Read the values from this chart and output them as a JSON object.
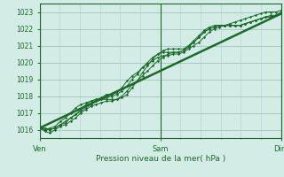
{
  "title": "Pression niveau de la mer( hPa )",
  "bg_color": "#d4ece6",
  "grid_color_major": "#a0c4bc",
  "grid_color_minor": "#b8d8d2",
  "line_color": "#1a6b2a",
  "tick_color": "#1a6b2a",
  "ylim": [
    1015.5,
    1023.5
  ],
  "yticks": [
    1016,
    1017,
    1018,
    1019,
    1020,
    1021,
    1022,
    1023
  ],
  "xtick_labels": [
    "Ven",
    "Sam",
    "Dim"
  ],
  "xtick_positions": [
    0,
    48,
    96
  ],
  "x_total": 96,
  "x_minor_divisions": 8,
  "series": [
    [
      1016.1,
      1016.1,
      1016.0,
      1016.1,
      1016.3,
      1016.4,
      1016.7,
      1016.9,
      1017.2,
      1017.5,
      1017.7,
      1017.8,
      1017.9,
      1018.1,
      1018.1,
      1018.2,
      1018.5,
      1018.9,
      1019.2,
      1019.4,
      1019.7,
      1019.9,
      1020.1,
      1020.3,
      1020.4,
      1020.4,
      1020.5,
      1020.5,
      1020.6,
      1020.8,
      1021.0,
      1021.2,
      1021.5,
      1021.8,
      1022.0,
      1022.1,
      1022.2,
      1022.2,
      1022.2,
      1022.2,
      1022.3,
      1022.4,
      1022.5,
      1022.6,
      1022.7,
      1022.7,
      1022.8,
      1022.9
    ],
    [
      1016.1,
      1015.9,
      1015.8,
      1016.0,
      1016.2,
      1016.3,
      1016.5,
      1016.7,
      1017.0,
      1017.2,
      1017.4,
      1017.5,
      1017.6,
      1017.7,
      1017.7,
      1017.8,
      1018.0,
      1018.3,
      1018.7,
      1018.9,
      1019.2,
      1019.5,
      1019.8,
      1020.1,
      1020.3,
      1020.5,
      1020.6,
      1020.6,
      1020.7,
      1021.0,
      1021.3,
      1021.6,
      1021.9,
      1022.1,
      1022.2,
      1022.2,
      1022.2,
      1022.2,
      1022.2,
      1022.2,
      1022.3,
      1022.4,
      1022.5,
      1022.6,
      1022.7,
      1022.7,
      1022.8,
      1022.9
    ],
    [
      1016.1,
      1016.0,
      1016.0,
      1016.1,
      1016.3,
      1016.5,
      1016.7,
      1016.9,
      1017.1,
      1017.3,
      1017.5,
      1017.7,
      1017.8,
      1017.9,
      1018.0,
      1018.1,
      1018.3,
      1018.6,
      1019.0,
      1019.3,
      1019.7,
      1020.0,
      1020.3,
      1020.5,
      1020.6,
      1020.6,
      1020.6,
      1020.6,
      1020.7,
      1020.9,
      1021.2,
      1021.5,
      1021.8,
      1022.0,
      1022.1,
      1022.2,
      1022.2,
      1022.2,
      1022.2,
      1022.2,
      1022.3,
      1022.4,
      1022.5,
      1022.6,
      1022.7,
      1022.8,
      1022.8,
      1023.0
    ],
    [
      1016.1,
      1016.0,
      1016.1,
      1016.2,
      1016.5,
      1016.7,
      1017.0,
      1017.3,
      1017.5,
      1017.6,
      1017.7,
      1017.8,
      1017.8,
      1017.8,
      1017.8,
      1017.8,
      1017.9,
      1018.1,
      1018.5,
      1018.9,
      1019.4,
      1019.8,
      1020.2,
      1020.5,
      1020.7,
      1020.8,
      1020.8,
      1020.8,
      1020.8,
      1021.0,
      1021.2,
      1021.5,
      1021.8,
      1022.0,
      1022.1,
      1022.2,
      1022.2,
      1022.3,
      1022.4,
      1022.5,
      1022.6,
      1022.7,
      1022.8,
      1022.9,
      1023.0,
      1023.0,
      1023.0,
      1023.1
    ]
  ],
  "trend": [
    1016.1,
    1022.9
  ]
}
